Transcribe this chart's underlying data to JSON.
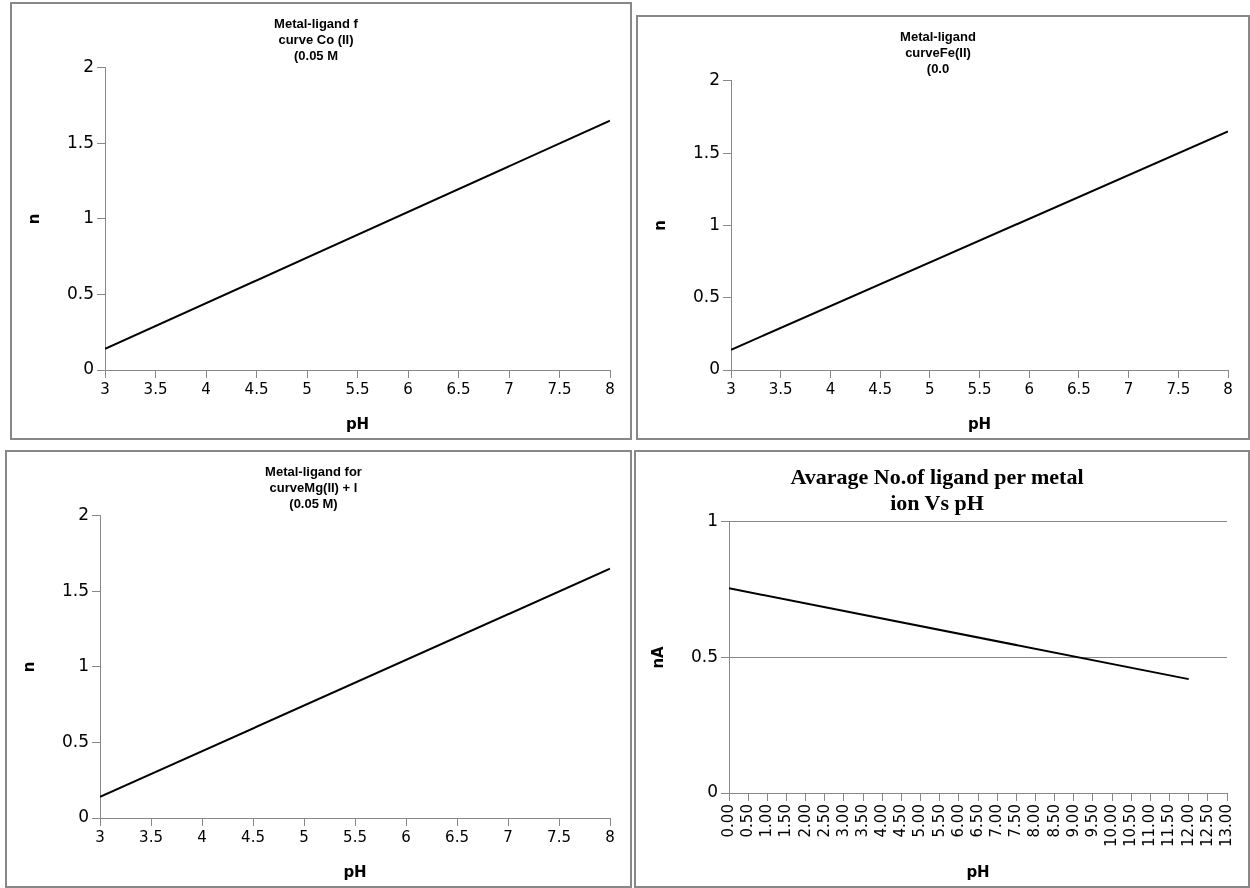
{
  "chart_data": [
    {
      "type": "line",
      "title": "Metal-ligand f\ncurve Co (II)\n(0.05 M",
      "xlabel": "pH",
      "ylabel": "n",
      "x": [
        3,
        8
      ],
      "series": [
        {
          "color": "#000000",
          "values": [
            0.14,
            1.65
          ]
        }
      ],
      "xlim": [
        3,
        8
      ],
      "xticks": [
        3,
        3.5,
        4,
        4.5,
        5,
        5.5,
        6,
        6.5,
        7,
        7.5,
        8
      ],
      "ylim": [
        0,
        2
      ],
      "yticks": [
        0,
        0.5,
        1,
        1.5,
        2
      ],
      "grid": false,
      "legend": false,
      "marker": "none"
    },
    {
      "type": "line",
      "title": "Metal-ligand\ncurveFe(II)\n(0.0",
      "xlabel": "pH",
      "ylabel": "n",
      "x": [
        3,
        8
      ],
      "series": [
        {
          "color": "#000000",
          "values": [
            0.14,
            1.65
          ]
        }
      ],
      "xlim": [
        3,
        8
      ],
      "xticks": [
        3,
        3.5,
        4,
        4.5,
        5,
        5.5,
        6,
        6.5,
        7,
        7.5,
        8
      ],
      "ylim": [
        0,
        2
      ],
      "yticks": [
        0,
        0.5,
        1,
        1.5,
        2
      ],
      "grid": false,
      "legend": false,
      "marker": "none"
    },
    {
      "type": "line",
      "title": "Metal-ligand for\ncurveMg(II) + l\n(0.05 M)",
      "xlabel": "pH",
      "ylabel": "n",
      "x": [
        3,
        8
      ],
      "series": [
        {
          "color": "#000000",
          "values": [
            0.14,
            1.65
          ]
        }
      ],
      "xlim": [
        3,
        8
      ],
      "xticks": [
        3,
        3.5,
        4,
        4.5,
        5,
        5.5,
        6,
        6.5,
        7,
        7.5,
        8
      ],
      "ylim": [
        0,
        2
      ],
      "yticks": [
        0,
        0.5,
        1,
        1.5,
        2
      ],
      "grid": false,
      "legend": false,
      "marker": "none"
    },
    {
      "type": "line",
      "title": "Avarage No.of ligand per metal\nion Vs pH",
      "xlabel": "pH",
      "ylabel": "nA",
      "x": [
        0,
        12
      ],
      "series": [
        {
          "color": "#000000",
          "values": [
            0.755,
            0.42
          ]
        }
      ],
      "xlim": [
        0,
        13
      ],
      "xticks": [
        {
          "value": 0,
          "label": "0.00"
        },
        {
          "value": 0.5,
          "label": "0.50"
        },
        {
          "value": 1,
          "label": "1.00"
        },
        {
          "value": 1.5,
          "label": "1.50"
        },
        {
          "value": 2,
          "label": "2.00"
        },
        {
          "value": 2.5,
          "label": "2.50"
        },
        {
          "value": 3,
          "label": "3.00"
        },
        {
          "value": 3.5,
          "label": "3.50"
        },
        {
          "value": 4,
          "label": "4.00"
        },
        {
          "value": 4.5,
          "label": "4.50"
        },
        {
          "value": 5,
          "label": "5.00"
        },
        {
          "value": 5.5,
          "label": "5.50"
        },
        {
          "value": 6,
          "label": "6.00"
        },
        {
          "value": 6.5,
          "label": "6.50"
        },
        {
          "value": 7,
          "label": "7.00"
        },
        {
          "value": 7.5,
          "label": "7.50"
        },
        {
          "value": 8,
          "label": "8.00"
        },
        {
          "value": 8.5,
          "label": "8.50"
        },
        {
          "value": 9,
          "label": "9.00"
        },
        {
          "value": 9.5,
          "label": "9.50"
        },
        {
          "value": 10,
          "label": "10.00"
        },
        {
          "value": 10.5,
          "label": "10.50"
        },
        {
          "value": 11,
          "label": "11.00"
        },
        {
          "value": 11.5,
          "label": "11.50"
        },
        {
          "value": 12,
          "label": "12.00"
        },
        {
          "value": 12.5,
          "label": "12.50"
        },
        {
          "value": 13,
          "label": "13.00"
        }
      ],
      "ylim": [
        0,
        1
      ],
      "yticks": [
        0,
        0.5,
        1
      ],
      "grid": "y",
      "legend": false,
      "marker": "none"
    }
  ]
}
